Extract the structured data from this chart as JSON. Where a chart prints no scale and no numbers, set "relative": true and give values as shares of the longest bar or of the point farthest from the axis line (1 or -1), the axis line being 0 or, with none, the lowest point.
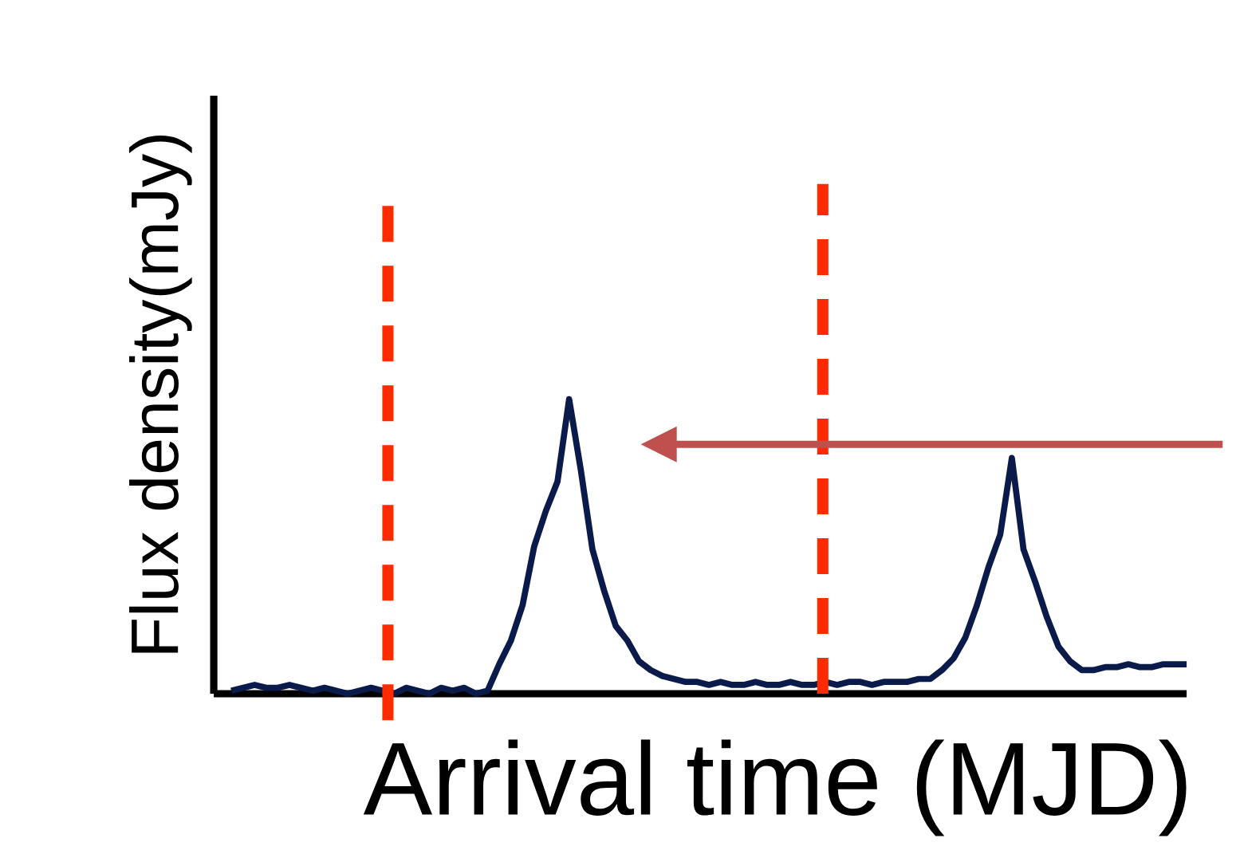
{
  "chart_data": {
    "type": "line",
    "relative": true,
    "xlabel": "Arrival time (MJD)",
    "ylabel": "Flux density(mJy)",
    "categories": [
      null,
      null,
      null,
      null,
      null,
      null,
      null,
      null,
      null,
      null,
      null,
      null,
      null,
      null,
      null,
      null,
      null,
      null,
      null,
      null,
      null,
      null,
      null,
      null,
      null,
      null,
      null,
      null,
      null,
      null,
      null,
      null,
      null,
      null,
      null,
      null,
      null,
      null,
      null,
      null,
      null,
      null,
      null,
      null,
      null,
      null,
      null,
      null,
      null,
      null,
      null,
      null,
      null,
      null,
      null,
      null,
      null,
      null,
      null,
      null,
      null,
      null,
      null,
      null,
      null,
      null,
      null,
      null,
      null,
      null,
      null,
      null,
      null,
      null,
      null,
      null,
      null,
      null,
      null,
      null,
      null,
      null,
      null
    ],
    "series": [
      {
        "color": "#0a1a4a",
        "values": [
          0.01,
          0.02,
          0.03,
          0.02,
          0.02,
          0.03,
          0.02,
          0.01,
          0.02,
          0.01,
          0.0,
          0.01,
          0.02,
          0.01,
          0.0,
          0.02,
          0.01,
          0.0,
          0.02,
          0.01,
          0.02,
          0.0,
          0.01,
          0.1,
          0.18,
          0.3,
          0.5,
          0.62,
          0.72,
          1.0,
          0.76,
          0.49,
          0.35,
          0.23,
          0.18,
          0.11,
          0.08,
          0.06,
          0.05,
          0.04,
          0.04,
          0.03,
          0.04,
          0.03,
          0.03,
          0.04,
          0.03,
          0.03,
          0.04,
          0.03,
          0.03,
          0.04,
          0.03,
          0.04,
          0.04,
          0.03,
          0.04,
          0.04,
          0.04,
          0.05,
          0.05,
          0.08,
          0.12,
          0.19,
          0.3,
          0.43,
          0.54,
          0.8,
          0.49,
          0.38,
          0.26,
          0.16,
          0.11,
          0.08,
          0.08,
          0.09,
          0.09,
          0.1,
          0.09,
          0.09,
          0.1,
          0.1,
          0.1
        ]
      }
    ],
    "line_style": "solid",
    "marker": "none"
  }
}
